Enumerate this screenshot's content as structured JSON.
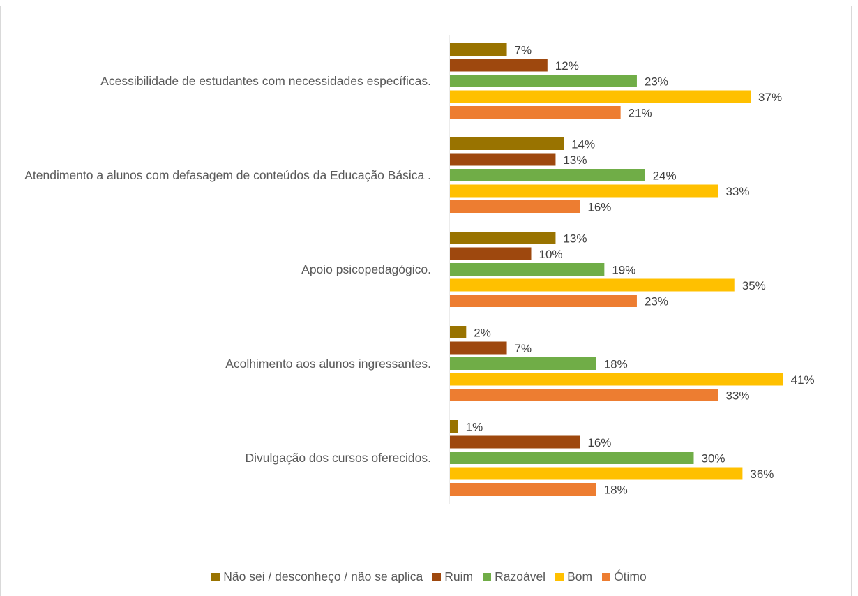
{
  "chart_data": {
    "type": "bar",
    "orientation": "horizontal",
    "categories": [
      "Acessibilidade de estudantes com necessidades específicas.",
      "Atendimento a alunos com defasagem de conteúdos da Educação Básica .",
      "Apoio psicopedagógico.",
      "Acolhimento aos alunos ingressantes.",
      "Divulgação dos cursos oferecidos."
    ],
    "series": [
      {
        "name": "Não sei / desconheço / não se aplica",
        "color": "#997300",
        "values": [
          7,
          14,
          13,
          2,
          1
        ],
        "value_labels": [
          "7%",
          "14%",
          "13%",
          "2%",
          "1%"
        ]
      },
      {
        "name": "Ruim",
        "color": "#9e480e",
        "values": [
          12,
          13,
          10,
          7,
          16
        ],
        "value_labels": [
          "12%",
          "13%",
          "10%",
          "7%",
          "16%"
        ]
      },
      {
        "name": "Razoável",
        "color": "#70ad47",
        "values": [
          23,
          24,
          19,
          18,
          30
        ],
        "value_labels": [
          "23%",
          "24%",
          "19%",
          "18%",
          "30%"
        ]
      },
      {
        "name": "Bom",
        "color": "#ffc000",
        "values": [
          37,
          33,
          35,
          41,
          36
        ],
        "value_labels": [
          "37%",
          "33%",
          "35%",
          "41%",
          "36%"
        ]
      },
      {
        "name": "Ótimo",
        "color": "#ed7d31",
        "values": [
          21,
          16,
          23,
          33,
          18
        ],
        "value_labels": [
          "21%",
          "16%",
          "23%",
          "33%",
          "18%"
        ]
      }
    ],
    "legend": "bottom"
  }
}
